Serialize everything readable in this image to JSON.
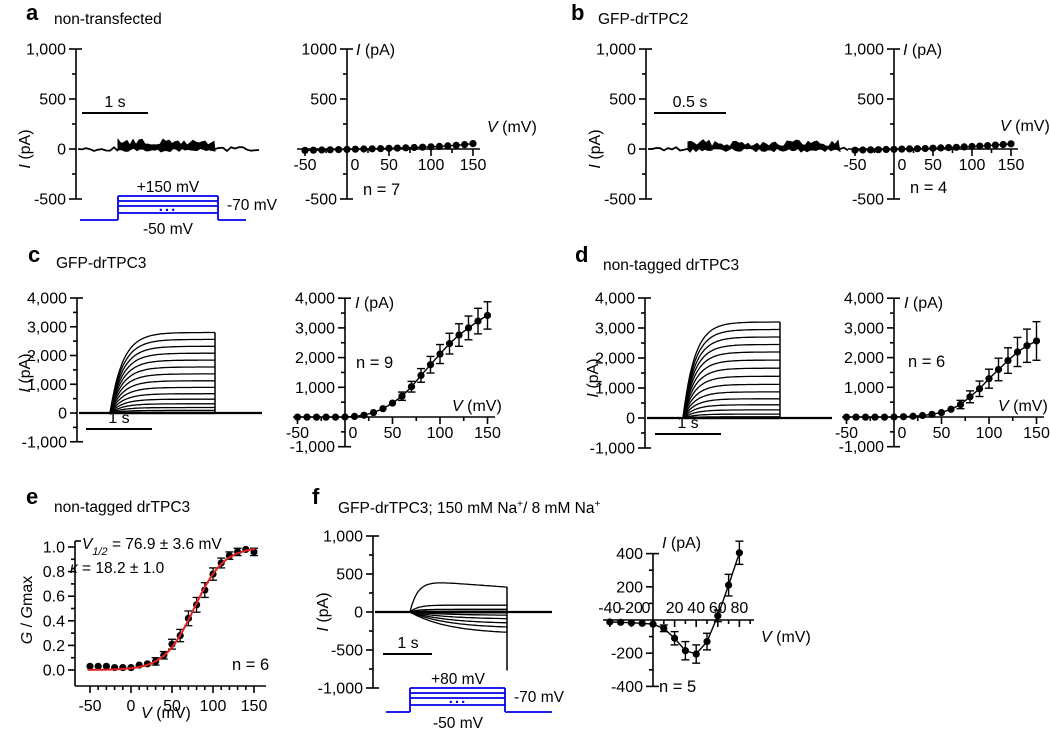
{
  "figure": {
    "panels": {
      "a": {
        "letter": "a",
        "title": "non-transfected"
      },
      "b": {
        "letter": "b",
        "title": "GFP-drTPC2"
      },
      "c": {
        "letter": "c",
        "title": "GFP-drTPC3"
      },
      "d": {
        "letter": "d",
        "title": "non-tagged drTPC3"
      },
      "e": {
        "letter": "e",
        "title": "non-tagged drTPC3"
      },
      "f": {
        "letter": "f",
        "title_p1": "GFP-drTPC3; 150 mM Na",
        "title_s1": "+",
        "title_p2": "/ 8 mM Na",
        "title_s2": "+"
      }
    }
  },
  "colors": {
    "ink": "#000000",
    "protocol_blue": "#0000ee",
    "fit_red": "#e32322"
  },
  "chart_data": [
    {
      "id": "a_traces",
      "type": "trace_family",
      "ylabel_italic": "I",
      "ylabel_rest": " (pA)",
      "yticks": [
        {
          "v": 1000,
          "l": "1,000"
        },
        {
          "v": 500,
          "l": "500"
        },
        {
          "v": 0,
          "l": "0"
        },
        {
          "v": -500,
          "l": "-500"
        }
      ],
      "yminor": [
        750,
        250,
        -250
      ],
      "scalebar_label": "1 s",
      "noise_band": [
        -12,
        70
      ]
    },
    {
      "id": "a_protocol",
      "type": "protocol",
      "top_label": "+150 mV",
      "right_label": "-70 mV",
      "bottom_label": "-50 mV",
      "dots": "..."
    },
    {
      "id": "a_iv",
      "type": "iv",
      "n_label": "n = 7",
      "ylabel_italic": "I",
      "ylabel_rest": " (pA)",
      "xlabel_italic": "V",
      "xlabel_rest": " (mV)",
      "yticks": [
        {
          "v": 1000,
          "l": "1000"
        },
        {
          "v": 500,
          "l": "500"
        },
        {
          "v": -500,
          "l": "-500"
        }
      ],
      "yminor": [
        750,
        250,
        -250
      ],
      "xticks": [
        {
          "v": -50,
          "l": "-50"
        },
        {
          "v": 0,
          "l": "0"
        },
        {
          "v": 50,
          "l": "50"
        },
        {
          "v": 100,
          "l": "100"
        },
        {
          "v": 150,
          "l": "150"
        }
      ],
      "xminor": [
        -25,
        25,
        75,
        125
      ],
      "x": [
        -50,
        -40,
        -30,
        -20,
        -10,
        0,
        10,
        20,
        30,
        40,
        50,
        60,
        70,
        80,
        90,
        100,
        110,
        120,
        130,
        140,
        150
      ],
      "y": [
        -14,
        -12,
        -10,
        -8,
        -6,
        -4,
        -2,
        0,
        2,
        4,
        7,
        9,
        12,
        15,
        18,
        22,
        26,
        31,
        37,
        44,
        54
      ],
      "err": [
        6,
        6,
        6,
        6,
        6,
        6,
        6,
        6,
        6,
        6,
        7,
        7,
        7,
        8,
        8,
        8,
        9,
        9,
        10,
        11,
        12
      ]
    },
    {
      "id": "b_traces",
      "type": "trace_family",
      "ylabel_italic": "I",
      "ylabel_rest": " (pA)",
      "yticks": [
        {
          "v": 1000,
          "l": "1,000"
        },
        {
          "v": 500,
          "l": "500"
        },
        {
          "v": 0,
          "l": "0"
        },
        {
          "v": -500,
          "l": "-500"
        }
      ],
      "yminor": [
        750,
        250,
        -250
      ],
      "scalebar_label": "0.5 s",
      "noise_band": [
        -10,
        62
      ]
    },
    {
      "id": "b_iv",
      "type": "iv",
      "n_label": "n = 4",
      "ylabel_italic": "I",
      "ylabel_rest": " (pA)",
      "xlabel_italic": "V",
      "xlabel_rest": " (mV)",
      "yticks": [
        {
          "v": 1000,
          "l": "1,000"
        },
        {
          "v": 500,
          "l": "500"
        },
        {
          "v": -500,
          "l": "-500"
        }
      ],
      "yminor": [
        750,
        250,
        -250
      ],
      "xticks": [
        {
          "v": -50,
          "l": "-50"
        },
        {
          "v": 0,
          "l": "0"
        },
        {
          "v": 50,
          "l": "50"
        },
        {
          "v": 100,
          "l": "100"
        },
        {
          "v": 150,
          "l": "150"
        }
      ],
      "xminor": [
        -25,
        25,
        75,
        125
      ],
      "x": [
        -50,
        -40,
        -30,
        -20,
        -10,
        0,
        10,
        20,
        30,
        40,
        50,
        60,
        70,
        80,
        90,
        100,
        110,
        120,
        130,
        140,
        150
      ],
      "y": [
        -12,
        -10,
        -9,
        -7,
        -5,
        -3,
        -1,
        1,
        3,
        5,
        8,
        11,
        14,
        17,
        21,
        25,
        29,
        34,
        39,
        45,
        52
      ],
      "err": [
        6,
        6,
        6,
        6,
        6,
        6,
        6,
        6,
        6,
        6,
        7,
        7,
        7,
        8,
        8,
        8,
        9,
        9,
        10,
        11,
        12
      ]
    },
    {
      "id": "c_traces",
      "type": "trace_family",
      "ylabel_italic": "I",
      "ylabel_rest": " (pA)",
      "yticks": [
        {
          "v": 4000,
          "l": "4,000"
        },
        {
          "v": 3000,
          "l": "3,000"
        },
        {
          "v": 2000,
          "l": "2,000"
        },
        {
          "v": 1000,
          "l": "1,000"
        },
        {
          "v": 0,
          "l": "0"
        },
        {
          "v": -1000,
          "l": "-1,000"
        }
      ],
      "yminor": [
        3500,
        2500,
        1500,
        500,
        -500
      ],
      "scalebar_label": "1 s",
      "plateaus": [
        2800,
        2560,
        2320,
        2080,
        1840,
        1600,
        1360,
        1120,
        890,
        670,
        480,
        320,
        190,
        90,
        20
      ]
    },
    {
      "id": "c_iv",
      "type": "iv",
      "n_label": "n = 9",
      "ylabel_italic": "I",
      "ylabel_rest": " (pA)",
      "xlabel_italic": "V",
      "xlabel_rest": " (mV)",
      "yticks": [
        {
          "v": 4000,
          "l": "4,000"
        },
        {
          "v": 3000,
          "l": "3,000"
        },
        {
          "v": 2000,
          "l": "2,000"
        },
        {
          "v": 1000,
          "l": "1,000"
        },
        {
          "v": -1000,
          "l": "-1,000"
        }
      ],
      "yminor": [
        3500,
        2500,
        1500,
        500,
        -500
      ],
      "xticks": [
        {
          "v": -50,
          "l": "-50"
        },
        {
          "v": 0,
          "l": "0"
        },
        {
          "v": 50,
          "l": "50"
        },
        {
          "v": 100,
          "l": "100"
        },
        {
          "v": 150,
          "l": "150"
        }
      ],
      "xminor": [
        -25,
        25,
        75,
        125
      ],
      "x": [
        -50,
        -40,
        -30,
        -20,
        -10,
        0,
        10,
        20,
        30,
        40,
        50,
        60,
        70,
        80,
        90,
        100,
        110,
        120,
        130,
        140,
        150
      ],
      "y": [
        -5,
        -5,
        -5,
        -5,
        -5,
        0,
        20,
        60,
        150,
        280,
        470,
        700,
        1020,
        1400,
        1760,
        2120,
        2470,
        2760,
        3000,
        3230,
        3420
      ],
      "err": [
        15,
        15,
        15,
        15,
        15,
        15,
        20,
        30,
        45,
        70,
        100,
        140,
        180,
        230,
        280,
        320,
        350,
        380,
        400,
        430,
        460
      ]
    },
    {
      "id": "d_traces",
      "type": "trace_family",
      "ylabel_italic": "I",
      "ylabel_rest": " (pA)",
      "yticks": [
        {
          "v": 4000,
          "l": "4,000"
        },
        {
          "v": 3000,
          "l": "3,000"
        },
        {
          "v": 2000,
          "l": "2,000"
        },
        {
          "v": 1000,
          "l": "1,000"
        },
        {
          "v": 0,
          "l": "0"
        },
        {
          "v": -1000,
          "l": "-1,000"
        }
      ],
      "yminor": [
        3500,
        2500,
        1500,
        500,
        -500
      ],
      "scalebar_label": "1 s",
      "plateaus": [
        3200,
        2950,
        2700,
        2450,
        2200,
        1930,
        1660,
        1390,
        1120,
        870,
        640,
        440,
        270,
        130,
        40
      ]
    },
    {
      "id": "d_iv",
      "type": "iv",
      "n_label": "n = 6",
      "ylabel_italic": "I",
      "ylabel_rest": " (pA)",
      "xlabel_italic": "V",
      "xlabel_rest": " (mV)",
      "yticks": [
        {
          "v": 4000,
          "l": "4,000"
        },
        {
          "v": 3000,
          "l": "3,000"
        },
        {
          "v": 2000,
          "l": "2,000"
        },
        {
          "v": 1000,
          "l": "1,000"
        },
        {
          "v": -1000,
          "l": "-1,000"
        }
      ],
      "yminor": [
        3500,
        2500,
        1500,
        500,
        -500
      ],
      "xticks": [
        {
          "v": -50,
          "l": "-50"
        },
        {
          "v": 0,
          "l": "0"
        },
        {
          "v": 50,
          "l": "50"
        },
        {
          "v": 100,
          "l": "100"
        },
        {
          "v": 150,
          "l": "150"
        }
      ],
      "xminor": [
        -25,
        25,
        75,
        125
      ],
      "x": [
        -50,
        -40,
        -30,
        -20,
        -10,
        0,
        10,
        20,
        30,
        40,
        50,
        60,
        70,
        80,
        90,
        100,
        110,
        120,
        130,
        140,
        150
      ],
      "y": [
        -5,
        -5,
        -5,
        -5,
        -5,
        0,
        10,
        25,
        50,
        90,
        150,
        260,
        420,
        680,
        950,
        1290,
        1600,
        1900,
        2190,
        2400,
        2560
      ],
      "err": [
        15,
        15,
        15,
        15,
        15,
        15,
        20,
        25,
        35,
        50,
        70,
        100,
        140,
        200,
        260,
        320,
        380,
        430,
        490,
        560,
        650
      ]
    },
    {
      "id": "e_gv",
      "type": "gv",
      "n_label": "n = 6",
      "annotation_line1": {
        "italic": "V",
        "sub": "1/2",
        "rest": " = 76.9 ± 3.6 mV"
      },
      "annotation_line2": {
        "italic": "κ",
        "rest": " = 18.2 ± 1.0"
      },
      "ylabel_parts": [
        {
          "t": "G",
          "i": true
        },
        {
          "t": " / "
        },
        {
          "t": "G",
          "i": true
        },
        {
          "t": "max"
        }
      ],
      "xlabel_italic": "V",
      "xlabel_rest": " (mV)",
      "yticks": [
        {
          "v": 1.0,
          "l": "1.0"
        },
        {
          "v": 0.8,
          "l": "0.8"
        },
        {
          "v": 0.6,
          "l": "0.6"
        },
        {
          "v": 0.4,
          "l": "0.4"
        },
        {
          "v": 0.2,
          "l": "0.2"
        },
        {
          "v": 0.0,
          "l": "0.0"
        }
      ],
      "yminor": [
        0.9,
        0.7,
        0.5,
        0.3,
        0.1
      ],
      "xticks": [
        {
          "v": -50,
          "l": "-50"
        },
        {
          "v": 0,
          "l": "0"
        },
        {
          "v": 50,
          "l": "50"
        },
        {
          "v": 100,
          "l": "100"
        },
        {
          "v": 150,
          "l": "150"
        }
      ],
      "xminor": [
        -40,
        -30,
        -20,
        -10,
        10,
        20,
        30,
        40,
        60,
        70,
        80,
        90,
        110,
        120,
        130,
        140
      ],
      "fit": {
        "v_half": 76.9,
        "k": 18.2
      },
      "x": [
        -50,
        -40,
        -30,
        -20,
        -10,
        0,
        10,
        20,
        30,
        40,
        50,
        60,
        70,
        80,
        90,
        100,
        110,
        120,
        130,
        140,
        150
      ],
      "y": [
        0.03,
        0.03,
        0.03,
        0.02,
        0.02,
        0.02,
        0.04,
        0.05,
        0.07,
        0.12,
        0.21,
        0.28,
        0.42,
        0.53,
        0.65,
        0.78,
        0.87,
        0.93,
        0.96,
        0.98,
        0.96
      ],
      "err": [
        0.02,
        0.02,
        0.02,
        0.02,
        0.02,
        0.02,
        0.02,
        0.02,
        0.03,
        0.03,
        0.04,
        0.05,
        0.06,
        0.06,
        0.06,
        0.05,
        0.04,
        0.03,
        0.03,
        0.02,
        0.03
      ]
    },
    {
      "id": "f_traces",
      "type": "trace_family",
      "ylabel_italic": "I",
      "ylabel_rest": " (pA)",
      "yticks": [
        {
          "v": 1000,
          "l": "1,000"
        },
        {
          "v": 500,
          "l": "500"
        },
        {
          "v": 0,
          "l": "0"
        },
        {
          "v": -500,
          "l": "-500"
        },
        {
          "v": -1000,
          "l": "-1,000"
        }
      ],
      "yminor": [
        750,
        250,
        -250,
        -750
      ],
      "scalebar_label": "1 s",
      "plateaus": [
        420,
        90,
        35,
        10,
        -12,
        -45,
        -95,
        -155,
        -215,
        -290
      ],
      "tail_min": -770
    },
    {
      "id": "f_protocol",
      "type": "protocol",
      "top_label": "+80 mV",
      "right_label": "-70 mV",
      "bottom_label": "-50 mV",
      "dots": "..."
    },
    {
      "id": "f_iv",
      "type": "iv",
      "n_label": "n = 5",
      "labels_above": true,
      "ylabel_italic": "I",
      "ylabel_rest": " (pA)",
      "xlabel_italic": "V",
      "xlabel_rest": " (mV)",
      "yticks": [
        {
          "v": 400,
          "l": "400"
        },
        {
          "v": 200,
          "l": "200"
        },
        {
          "v": -200,
          "l": "-200"
        },
        {
          "v": -400,
          "l": "-400"
        }
      ],
      "yminor": [
        300,
        100,
        -100,
        -300
      ],
      "xticks": [
        {
          "v": -40,
          "l": "-40"
        },
        {
          "v": -20,
          "l": "-20"
        },
        {
          "v": 0,
          "l": "0"
        },
        {
          "v": 20,
          "l": "20"
        },
        {
          "v": 40,
          "l": "40"
        },
        {
          "v": 60,
          "l": "60"
        },
        {
          "v": 80,
          "l": "80"
        }
      ],
      "xminor": [
        -30,
        -10,
        10,
        30,
        50,
        70,
        90
      ],
      "x": [
        -40,
        -30,
        -20,
        -10,
        0,
        10,
        20,
        30,
        40,
        50,
        60,
        70,
        80
      ],
      "y": [
        -12,
        -14,
        -17,
        -20,
        -25,
        -50,
        -110,
        -185,
        -205,
        -130,
        25,
        210,
        405
      ],
      "err": [
        8,
        8,
        8,
        10,
        12,
        20,
        40,
        55,
        55,
        50,
        35,
        65,
        70
      ]
    }
  ]
}
